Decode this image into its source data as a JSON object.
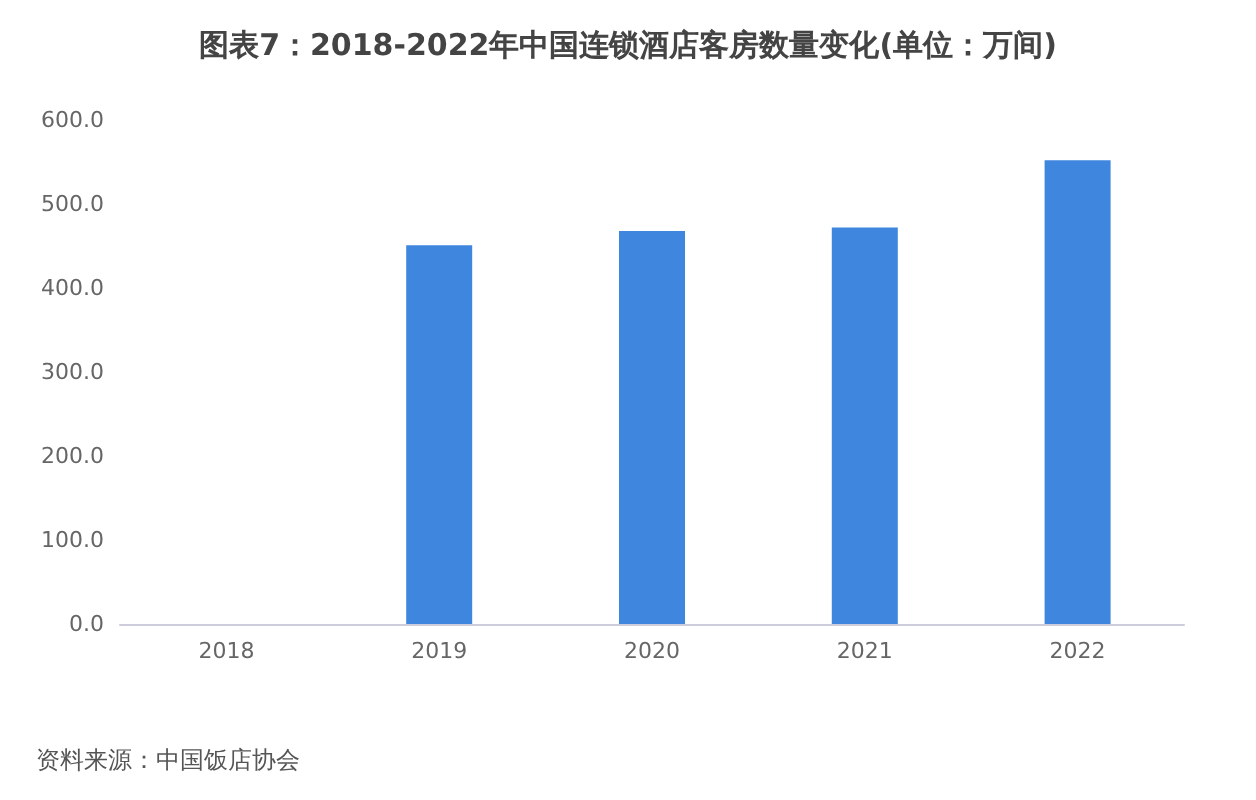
{
  "chart_data": {
    "type": "bar",
    "title": "图表7：2018-2022年中国连锁酒店客房数量变化(单位：万间)",
    "categories": [
      "2018",
      "2019",
      "2020",
      "2021",
      "2022"
    ],
    "values": [
      null,
      451,
      468,
      472,
      552
    ],
    "color": "#3f86de",
    "ylim": [
      0,
      600
    ],
    "yticks": [
      {
        "value": 0,
        "label": "0.0"
      },
      {
        "value": 100,
        "label": "100.0"
      },
      {
        "value": 200,
        "label": "200.0"
      },
      {
        "value": 300,
        "label": "300.0"
      },
      {
        "value": 400,
        "label": "400.0"
      },
      {
        "value": 500,
        "label": "500.0"
      },
      {
        "value": 600,
        "label": "600.0"
      }
    ],
    "grid": false,
    "annotations": [
      "资料来源：中国饭店协会"
    ]
  }
}
